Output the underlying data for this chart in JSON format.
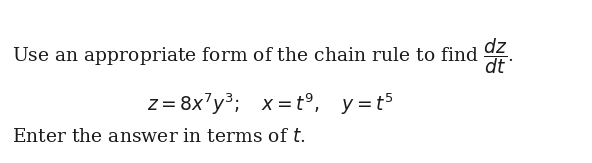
{
  "line1": "Use an appropriate form of the chain rule to find $\\dfrac{dz}{dt}$.",
  "line2": "$z = 8x^7y^3; \\quad x = t^9, \\quad y = t^5$",
  "line3": "Enter the answer in terms of $t$.",
  "bg_color": "#ffffff",
  "text_color": "#1a1a1a",
  "fontsize_main": 13.5,
  "fontsize_eq": 13.5
}
